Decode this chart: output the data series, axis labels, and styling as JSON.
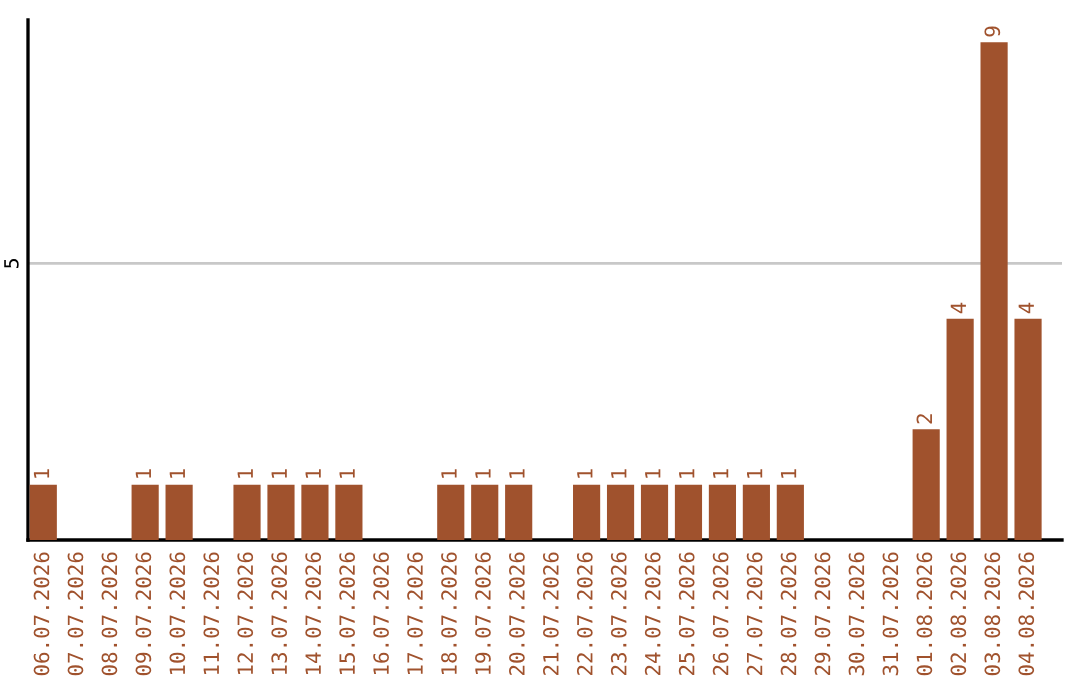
{
  "chart_data": {
    "type": "bar",
    "categories": [
      "06.07.2026",
      "07.07.2026",
      "08.07.2026",
      "09.07.2026",
      "10.07.2026",
      "11.07.2026",
      "12.07.2026",
      "13.07.2026",
      "14.07.2026",
      "15.07.2026",
      "16.07.2026",
      "17.07.2026",
      "18.07.2026",
      "19.07.2026",
      "20.07.2026",
      "21.07.2026",
      "22.07.2026",
      "23.07.2026",
      "24.07.2026",
      "25.07.2026",
      "26.07.2026",
      "27.07.2026",
      "28.07.2026",
      "29.07.2026",
      "30.07.2026",
      "31.07.2026",
      "01.08.2026",
      "02.08.2026",
      "03.08.2026",
      "04.08.2026"
    ],
    "values": [
      1,
      0,
      0,
      1,
      1,
      0,
      1,
      1,
      1,
      1,
      0,
      0,
      1,
      1,
      1,
      0,
      1,
      1,
      1,
      1,
      1,
      1,
      1,
      0,
      0,
      0,
      2,
      4,
      9,
      4
    ],
    "value_labels": [
      "1",
      null,
      null,
      "1",
      "1",
      null,
      "1",
      "1",
      "1",
      "1",
      null,
      null,
      "1",
      "1",
      "1",
      null,
      "1",
      "1",
      "1",
      "1",
      "1",
      "1",
      "1",
      null,
      null,
      null,
      "2",
      "4",
      "9",
      "4"
    ],
    "color": "#a0522d",
    "ylim": [
      0,
      9.4
    ],
    "yticks": [
      5
    ],
    "grid": "y"
  }
}
